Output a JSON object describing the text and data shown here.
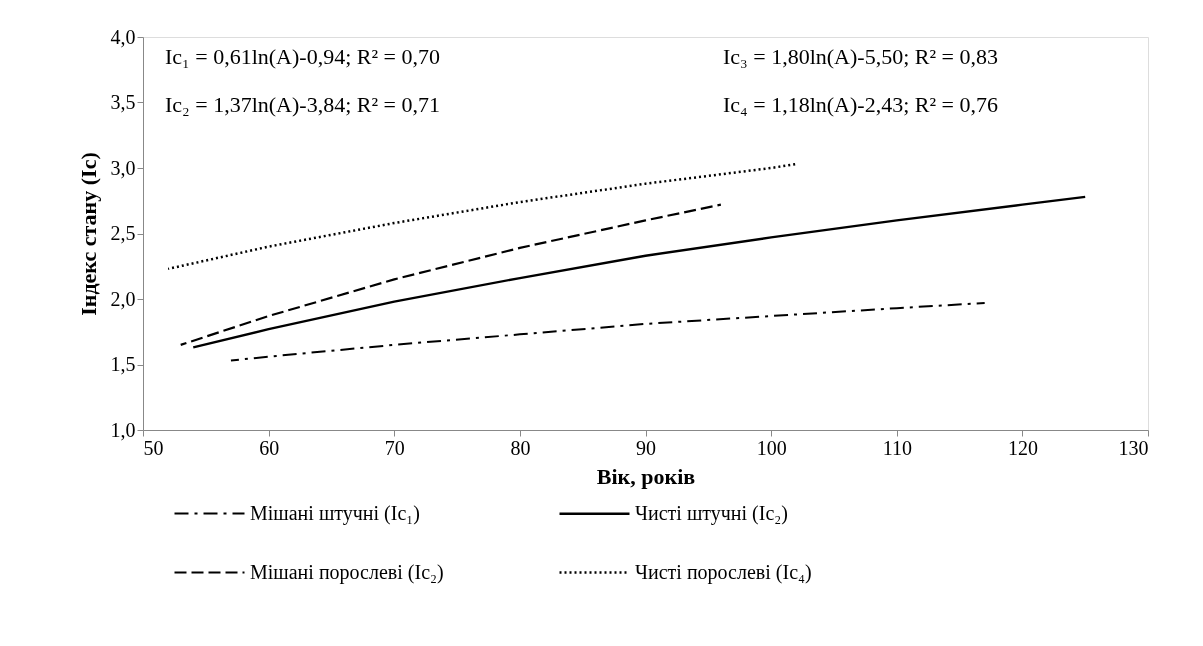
{
  "chart_data": {
    "type": "line",
    "xlabel": "Вік, років",
    "ylabel": "Індекс стану (Іс)",
    "xlim": [
      50,
      130
    ],
    "xticks": [
      50,
      60,
      70,
      80,
      90,
      100,
      110,
      120,
      130
    ],
    "ylim": [
      1,
      4
    ],
    "yticks": [
      {
        "value": 1,
        "label": "1,0"
      },
      {
        "value": 1.5,
        "label": "1,5"
      },
      {
        "value": 2,
        "label": "2,0"
      },
      {
        "value": 2.5,
        "label": "2,5"
      },
      {
        "value": 3,
        "label": "3,0"
      },
      {
        "value": 3.5,
        "label": "3,5"
      },
      {
        "value": 4,
        "label": "4,0"
      }
    ],
    "grid": false,
    "legend": "bottom",
    "marker": "none",
    "annotations": [
      "Ic₁ = 0,61ln(A)-0,94;   R² = 0,70",
      "Ic₂ = 1,37ln(A)-3,84;   R² = 0,71",
      "Ic₃ = 1,80ln(A)-5,50;   R² = 0,83",
      "Ic₄ = 1,18ln(A)-2,43;   R² = 0,76"
    ],
    "series": [
      {
        "name": "Мішані штучні (Ic₁)",
        "color": "#000000",
        "line_style": "dashdot",
        "x": [
          57,
          60,
          70,
          80,
          90,
          100,
          110,
          117
        ],
        "values": [
          1.53,
          1.56,
          1.65,
          1.73,
          1.81,
          1.87,
          1.93,
          1.97
        ]
      },
      {
        "name": "Мішані порослеві (Ic₂)",
        "color": "#000000",
        "line_style": "dashed",
        "x": [
          53,
          60,
          70,
          80,
          90,
          96
        ],
        "values": [
          1.65,
          1.87,
          2.15,
          2.39,
          2.6,
          2.72
        ]
      },
      {
        "name": "Чисті штучні (Ic₂)",
        "color": "#000000",
        "line_style": "solid",
        "x": [
          54,
          60,
          70,
          80,
          90,
          100,
          110,
          120,
          125
        ],
        "values": [
          1.63,
          1.77,
          1.98,
          2.16,
          2.33,
          2.47,
          2.6,
          2.72,
          2.78
        ]
      },
      {
        "name": "Чисті порослеві (Ic₄)",
        "color": "#000000",
        "line_style": "dotted",
        "x": [
          52,
          60,
          70,
          80,
          90,
          100,
          102
        ],
        "values": [
          2.23,
          2.4,
          2.58,
          2.74,
          2.88,
          3.0,
          3.03
        ]
      }
    ]
  }
}
